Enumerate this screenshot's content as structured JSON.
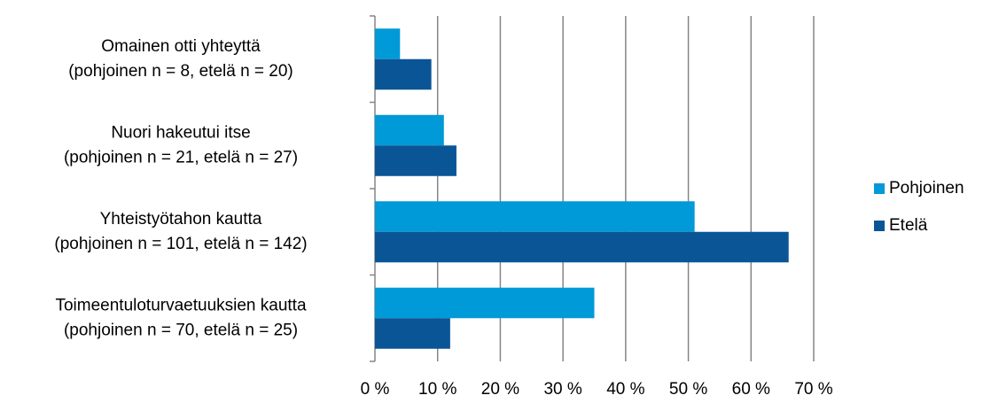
{
  "chart_data": {
    "type": "barh",
    "categories": [
      [
        "Omainen otti yhteyttä",
        "(pohjoinen n = 8, etelä n = 20)"
      ],
      [
        "Nuori hakeutui itse",
        "(pohjoinen n = 21, etelä n = 27)"
      ],
      [
        "Yhteistyötahon kautta",
        "(pohjoinen n = 101, etelä n = 142)"
      ],
      [
        "Toimeentuloturvaetuuksien kautta",
        "(pohjoinen n = 70, etelä n = 25)"
      ]
    ],
    "series": [
      {
        "name": "Pohjoinen",
        "color": "#009ad8",
        "values": [
          4,
          11,
          51,
          35
        ]
      },
      {
        "name": "Etelä",
        "color": "#0a5596",
        "values": [
          9,
          13,
          66,
          12
        ]
      }
    ],
    "xlim": [
      0,
      70
    ],
    "xticks": [
      {
        "value": 0,
        "label": "0 %"
      },
      {
        "value": 10,
        "label": "10 %"
      },
      {
        "value": 20,
        "label": "20 %"
      },
      {
        "value": 30,
        "label": "30 %"
      },
      {
        "value": 40,
        "label": "40 %"
      },
      {
        "value": 50,
        "label": "50 %"
      },
      {
        "value": 60,
        "label": "60 %"
      },
      {
        "value": 70,
        "label": "70 %"
      }
    ],
    "grid": true,
    "legend": "right"
  }
}
